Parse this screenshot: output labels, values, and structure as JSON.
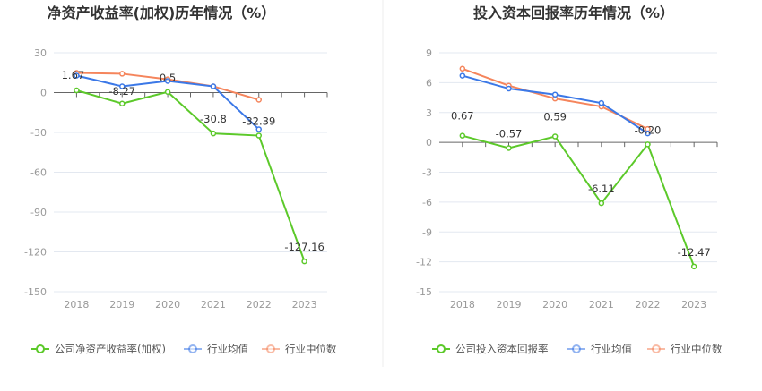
{
  "colors": {
    "company": "#5cc92a",
    "avg": "#3b78e7",
    "median": "#f5855c",
    "grid": "#e3e8f0",
    "axis": "#666666"
  },
  "chart_data": [
    {
      "type": "line",
      "title": "净资产收益率(加权)历年情况（%）",
      "categories": [
        "2018",
        "2019",
        "2020",
        "2021",
        "2022",
        "2023"
      ],
      "ylim": [
        -150,
        30
      ],
      "yticks": [
        30,
        0,
        -30,
        -60,
        -90,
        -120,
        -150
      ],
      "grid": true,
      "legend_position": "bottom",
      "series": [
        {
          "name": "公司净资产收益率(加权)",
          "key": "company",
          "values": [
            1.67,
            -8.27,
            0.5,
            -30.8,
            -32.39,
            -127.16
          ],
          "labels": [
            "1.67",
            "-8.27",
            "0.5",
            "-30.8",
            "-32.39",
            "-127.16"
          ]
        },
        {
          "name": "行业均值",
          "key": "avg",
          "values": [
            12.8,
            4.7,
            8.8,
            4.7,
            -27.6,
            null
          ]
        },
        {
          "name": "行业中位数",
          "key": "median",
          "values": [
            14.8,
            14.2,
            10.0,
            4.7,
            -5.4,
            null
          ]
        }
      ]
    },
    {
      "type": "line",
      "title": "投入资本回报率历年情况（%）",
      "categories": [
        "2018",
        "2019",
        "2020",
        "2021",
        "2022",
        "2023"
      ],
      "ylim": [
        -15,
        9
      ],
      "yticks": [
        9,
        6,
        3,
        0,
        -3,
        -6,
        -9,
        -12,
        -15
      ],
      "grid": true,
      "legend_position": "bottom",
      "series": [
        {
          "name": "公司投入资本回报率",
          "key": "company",
          "values": [
            0.67,
            -0.57,
            0.59,
            -6.11,
            -0.2,
            -12.47
          ],
          "labels": [
            "0.67",
            "-0.57",
            "0.59",
            "-6.11",
            "-0.20",
            "-12.47"
          ]
        },
        {
          "name": "行业均值",
          "key": "avg",
          "values": [
            6.7,
            5.4,
            4.8,
            3.95,
            0.9,
            null
          ]
        },
        {
          "name": "行业中位数",
          "key": "median",
          "values": [
            7.4,
            5.7,
            4.4,
            3.6,
            1.35,
            null
          ]
        }
      ]
    }
  ]
}
